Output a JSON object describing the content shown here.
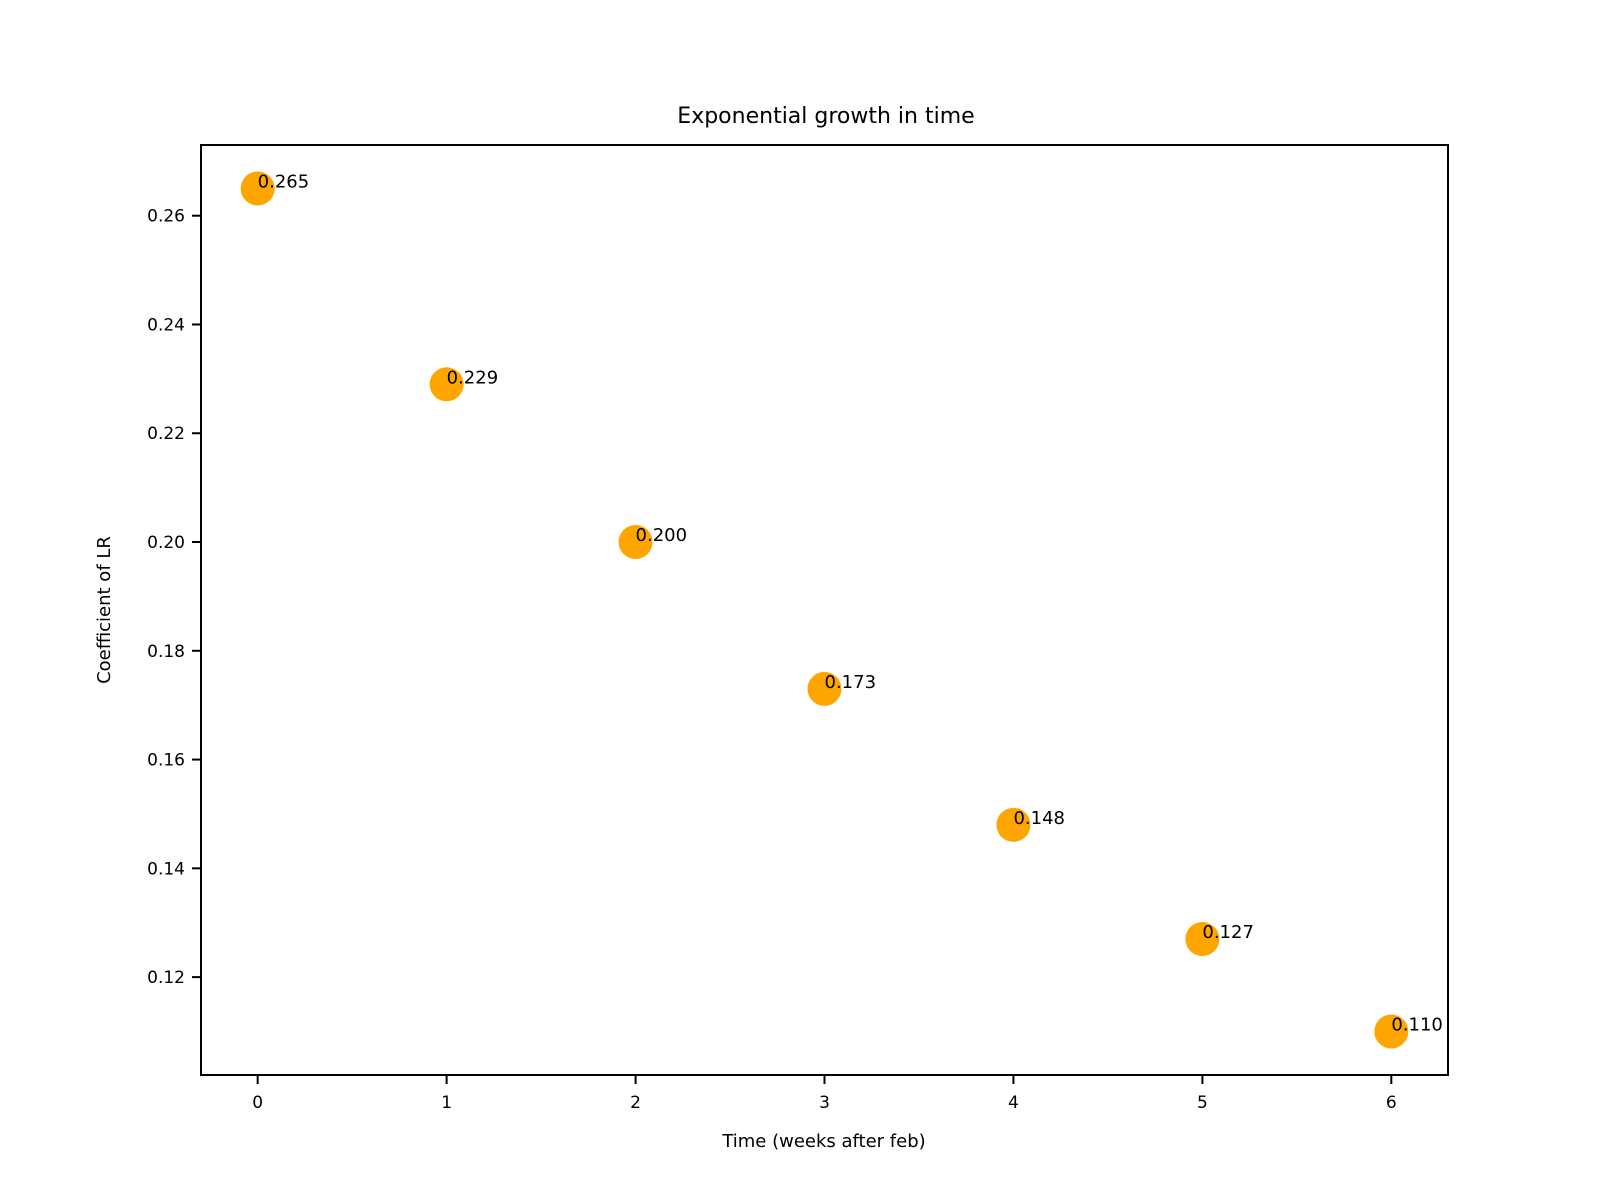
{
  "chart_data": {
    "type": "scatter",
    "title": "Exponential growth in time",
    "xlabel": "Time (weeks after feb)",
    "ylabel": "Coefficient of LR",
    "x": [
      0,
      1,
      2,
      3,
      4,
      5,
      6
    ],
    "y": [
      0.265,
      0.229,
      0.2,
      0.173,
      0.148,
      0.127,
      0.11
    ],
    "point_labels": [
      "0.265",
      "0.229",
      "0.200",
      "0.173",
      "0.148",
      "0.127",
      "0.110"
    ],
    "xlim": [
      -0.3,
      6.3
    ],
    "ylim": [
      0.102,
      0.273
    ],
    "xticks": [
      0,
      1,
      2,
      3,
      4,
      5,
      6
    ],
    "xtick_labels": [
      "0",
      "1",
      "2",
      "3",
      "4",
      "5",
      "6"
    ],
    "yticks": [
      0.12,
      0.14,
      0.16,
      0.18,
      0.2,
      0.22,
      0.24,
      0.26
    ],
    "ytick_labels": [
      "0.12",
      "0.14",
      "0.16",
      "0.18",
      "0.20",
      "0.22",
      "0.24",
      "0.26"
    ],
    "marker_color": "#ffa500",
    "grid": false
  }
}
